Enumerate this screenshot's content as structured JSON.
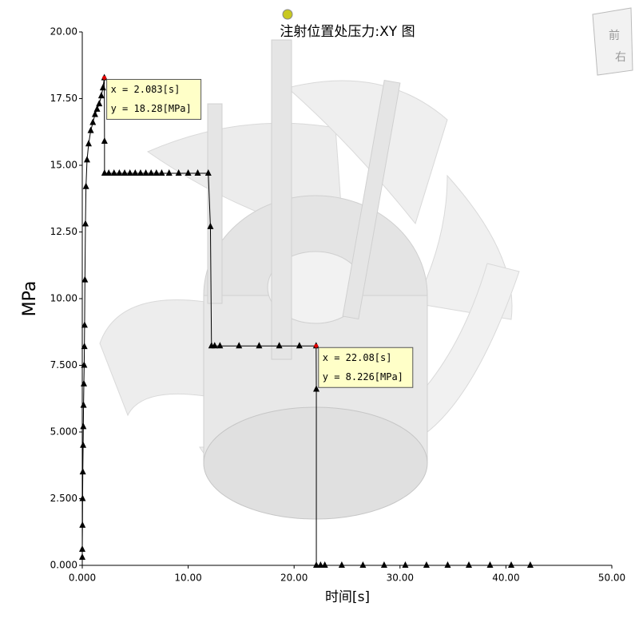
{
  "chart_data": {
    "type": "line",
    "title": "注射位置处压力:XY 图",
    "x_label": "时间[s]",
    "y_label": "MPa",
    "xlim": [
      0,
      50
    ],
    "ylim": [
      0,
      20
    ],
    "xticks": [
      {
        "value": 0,
        "label": "0.000"
      },
      {
        "value": 10,
        "label": "10.00"
      },
      {
        "value": 20,
        "label": "20.00"
      },
      {
        "value": 30,
        "label": "30.00"
      },
      {
        "value": 40,
        "label": "40.00"
      },
      {
        "value": 50,
        "label": "50.00"
      }
    ],
    "yticks": [
      {
        "value": 0,
        "label": "0.000"
      },
      {
        "value": 2.5,
        "label": "2.500"
      },
      {
        "value": 5,
        "label": "5.000"
      },
      {
        "value": 7.5,
        "label": "7.500"
      },
      {
        "value": 10,
        "label": "10.00"
      },
      {
        "value": 12.5,
        "label": "12.50"
      },
      {
        "value": 15,
        "label": "15.00"
      },
      {
        "value": 17.5,
        "label": "17.50"
      },
      {
        "value": 20,
        "label": "20.00"
      }
    ],
    "series": [
      {
        "color": "#000000",
        "x": [
          0,
          0,
          0.02,
          0.03,
          0.05,
          0.08,
          0.1,
          0.12,
          0.15,
          0.18,
          0.2,
          0.22,
          0.25,
          0.3,
          0.35,
          0.45,
          0.6,
          0.8,
          1.0,
          1.2,
          1.4,
          1.6,
          1.8,
          1.95,
          2.083,
          2.1,
          2.1,
          2.5,
          3,
          3.5,
          4,
          4.5,
          5,
          5.5,
          6,
          6.5,
          7,
          7.5,
          8.2,
          9.1,
          10,
          10.9,
          11.9,
          12.1,
          12.2,
          12.5,
          13,
          14.8,
          16.7,
          18.6,
          20.5,
          22.08,
          22.1,
          22.1,
          22.5,
          22.9,
          24.5,
          26.5,
          28.5,
          30.5,
          32.5,
          34.5,
          36.5,
          38.5,
          40.5,
          42.3
        ],
        "values": [
          0.3,
          0.6,
          1.5,
          2.5,
          3.5,
          4.5,
          5.2,
          6,
          6.8,
          7.5,
          8.2,
          9,
          10.7,
          12.8,
          14.2,
          15.2,
          15.8,
          16.3,
          16.6,
          16.9,
          17.1,
          17.3,
          17.6,
          17.9,
          18.28,
          15.9,
          14.7,
          14.7,
          14.7,
          14.7,
          14.7,
          14.7,
          14.7,
          14.7,
          14.7,
          14.7,
          14.7,
          14.7,
          14.7,
          14.7,
          14.7,
          14.7,
          14.7,
          12.7,
          8.226,
          8.226,
          8.226,
          8.226,
          8.226,
          8.226,
          8.226,
          8.226,
          6.6,
          0,
          0,
          0,
          0,
          0,
          0,
          0,
          0,
          0,
          0,
          0,
          0,
          0
        ]
      }
    ],
    "annotations": [
      {
        "x": 2.083,
        "y": 18.28,
        "lines": [
          "x = 2.083[s]",
          "y = 18.28[MPa]"
        ]
      },
      {
        "x": 22.08,
        "y": 8.226,
        "lines": [
          "x = 22.08[s]",
          "y = 8.226[MPa]"
        ]
      }
    ]
  },
  "view_cube": {
    "labels": [
      "前",
      "右"
    ]
  }
}
